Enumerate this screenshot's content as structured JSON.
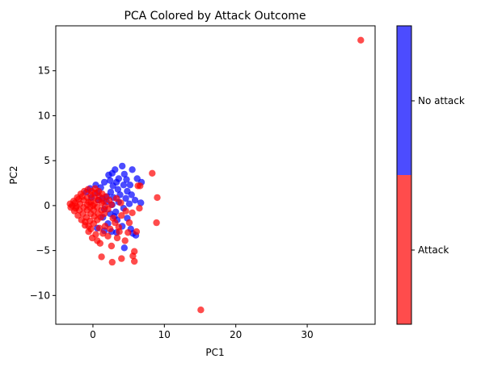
{
  "chart_data": {
    "type": "scatter",
    "title": "PCA Colored by Attack Outcome",
    "xlabel": "PC1",
    "ylabel": "PC2",
    "xlim": [
      -5.2,
      39.5
    ],
    "ylim": [
      -13.2,
      20.0
    ],
    "xticks": [
      0,
      10,
      20,
      30
    ],
    "yticks": [
      -10,
      -5,
      0,
      5,
      10,
      15
    ],
    "grid": false,
    "point_alpha": 0.7,
    "series": [
      {
        "name": "No attack",
        "color": "#0000ff",
        "points": [
          [
            2.2,
            3.4
          ],
          [
            2.7,
            3.6
          ],
          [
            3.1,
            4.0
          ],
          [
            4.1,
            4.4
          ],
          [
            5.5,
            4.0
          ],
          [
            4.4,
            3.5
          ],
          [
            3.6,
            3.0
          ],
          [
            3.3,
            2.6
          ],
          [
            2.8,
            2.2
          ],
          [
            4.7,
            2.9
          ],
          [
            6.2,
            3.0
          ],
          [
            6.8,
            2.6
          ],
          [
            5.2,
            2.3
          ],
          [
            4.3,
            2.3
          ],
          [
            3.5,
            1.8
          ],
          [
            2.5,
            1.5
          ],
          [
            2.0,
            1.0
          ],
          [
            2.9,
            0.9
          ],
          [
            3.8,
            1.2
          ],
          [
            4.8,
            1.6
          ],
          [
            5.4,
            1.2
          ],
          [
            4.6,
            0.8
          ],
          [
            3.6,
            0.4
          ],
          [
            2.7,
            0.1
          ],
          [
            1.9,
            0.4
          ],
          [
            1.3,
            0.8
          ],
          [
            0.6,
            1.4
          ],
          [
            1.1,
            2.0
          ],
          [
            0.4,
            2.3
          ],
          [
            1.6,
            2.6
          ],
          [
            -0.4,
            1.9
          ],
          [
            -0.9,
            1.5
          ],
          [
            4.3,
            -0.3
          ],
          [
            5.1,
            0.2
          ],
          [
            3.2,
            -0.7
          ],
          [
            2.4,
            -0.9
          ],
          [
            4.8,
            -1.4
          ],
          [
            3.4,
            -1.6
          ],
          [
            4.1,
            -2.3
          ],
          [
            5.3,
            -2.6
          ],
          [
            3.3,
            -3.0
          ],
          [
            2.6,
            -2.9
          ],
          [
            1.6,
            -2.8
          ],
          [
            0.6,
            -2.5
          ],
          [
            5.6,
            -3.1
          ],
          [
            6.0,
            -3.3
          ],
          [
            4.4,
            -4.7
          ],
          [
            3.0,
            -1.2
          ],
          [
            2.1,
            -2.0
          ],
          [
            1.4,
            -1.3
          ],
          [
            6.7,
            0.3
          ],
          [
            5.9,
            0.6
          ],
          [
            0.8,
            0.6
          ],
          [
            1.6,
            -0.4
          ],
          [
            -0.2,
            0.9
          ],
          [
            2.4,
            2.8
          ]
        ]
      },
      {
        "name": "Attack",
        "color": "#ff0000",
        "points": [
          [
            37.5,
            18.4
          ],
          [
            15.1,
            -11.6
          ],
          [
            8.3,
            3.6
          ],
          [
            6.3,
            2.2
          ],
          [
            9.0,
            0.9
          ],
          [
            8.9,
            -1.9
          ],
          [
            6.1,
            -2.9
          ],
          [
            5.8,
            -5.1
          ],
          [
            5.6,
            -5.6
          ],
          [
            5.8,
            -6.2
          ],
          [
            4.0,
            -5.9
          ],
          [
            2.7,
            -6.3
          ],
          [
            1.2,
            -5.7
          ],
          [
            4.5,
            -3.9
          ],
          [
            3.4,
            -3.6
          ],
          [
            2.1,
            -3.4
          ],
          [
            1.4,
            -3.1
          ],
          [
            0.6,
            -3.9
          ],
          [
            -0.1,
            -3.6
          ],
          [
            -0.6,
            -2.9
          ],
          [
            -1.1,
            -2.2
          ],
          [
            -1.6,
            -1.6
          ],
          [
            -2.1,
            -1.1
          ],
          [
            -2.6,
            -0.6
          ],
          [
            -3.1,
            -0.2
          ],
          [
            -3.2,
            0.2
          ],
          [
            -2.7,
            0.5
          ],
          [
            -2.2,
            0.9
          ],
          [
            -1.7,
            1.3
          ],
          [
            -1.2,
            1.6
          ],
          [
            -0.7,
            1.8
          ],
          [
            -0.2,
            1.6
          ],
          [
            0.3,
            1.9
          ],
          [
            0.8,
            1.6
          ],
          [
            1.3,
            1.3
          ],
          [
            1.8,
            1.0
          ],
          [
            2.3,
            0.6
          ],
          [
            2.6,
            0.1
          ],
          [
            2.1,
            -0.4
          ],
          [
            1.6,
            -0.9
          ],
          [
            1.1,
            -1.3
          ],
          [
            0.6,
            -1.6
          ],
          [
            0.1,
            -2.0
          ],
          [
            -0.4,
            -1.7
          ],
          [
            -0.9,
            -1.3
          ],
          [
            -1.4,
            -0.9
          ],
          [
            -1.9,
            -0.5
          ],
          [
            -2.3,
            -0.1
          ],
          [
            -1.8,
            0.2
          ],
          [
            -1.3,
            0.6
          ],
          [
            -0.8,
            0.9
          ],
          [
            -0.3,
            1.2
          ],
          [
            0.2,
            0.9
          ],
          [
            0.7,
            0.6
          ],
          [
            1.2,
            0.3
          ],
          [
            1.7,
            -0.1
          ],
          [
            1.2,
            -0.5
          ],
          [
            0.7,
            -0.9
          ],
          [
            0.2,
            -1.2
          ],
          [
            -0.3,
            -0.9
          ],
          [
            -0.8,
            -0.5
          ],
          [
            -1.3,
            -0.2
          ],
          [
            -0.8,
            0.1
          ],
          [
            -0.3,
            0.4
          ],
          [
            0.2,
            0.2
          ],
          [
            0.6,
            -0.2
          ],
          [
            0.1,
            -0.5
          ],
          [
            -0.4,
            -0.2
          ],
          [
            0.0,
            0.0
          ],
          [
            -0.6,
            0.4
          ],
          [
            3.1,
            -1.9
          ],
          [
            3.6,
            -2.4
          ],
          [
            4.0,
            -1.1
          ],
          [
            2.8,
            -1.4
          ],
          [
            4.6,
            -0.6
          ],
          [
            3.9,
            0.3
          ],
          [
            3.3,
            0.8
          ],
          [
            5.1,
            -1.9
          ],
          [
            5.5,
            -0.8
          ],
          [
            6.5,
            -0.3
          ],
          [
            2.4,
            -2.6
          ],
          [
            1.7,
            -2.3
          ],
          [
            0.9,
            -2.5
          ],
          [
            -0.3,
            -2.6
          ],
          [
            0.4,
            -3.2
          ],
          [
            1.0,
            -4.2
          ],
          [
            2.6,
            -4.5
          ],
          [
            4.9,
            -3.0
          ],
          [
            3.7,
            -2.9
          ],
          [
            6.6,
            2.2
          ],
          [
            -1.5,
            1.0
          ],
          [
            -2.0,
            0.7
          ],
          [
            -2.5,
            0.3
          ],
          [
            -2.9,
            0.0
          ],
          [
            -2.4,
            -0.3
          ],
          [
            -1.1,
            -1.8
          ],
          [
            -0.6,
            -2.3
          ],
          [
            1.5,
            0.5
          ],
          [
            0.9,
            1.0
          ],
          [
            0.3,
            1.4
          ]
        ]
      }
    ],
    "colorbar": {
      "labels": [
        "No attack",
        "Attack"
      ],
      "colors": [
        "#0000ff",
        "#ff0000"
      ],
      "alpha": 0.7
    }
  }
}
